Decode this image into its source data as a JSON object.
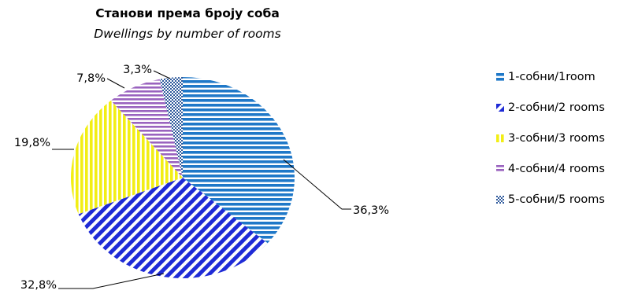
{
  "chart_data": {
    "type": "pie",
    "title": "Станови према броју соба",
    "subtitle": "Dwellings by number of rooms",
    "legend_position": "right",
    "slices": [
      {
        "label": "1-собни/1room",
        "value": 36.3,
        "value_label": "36,3%",
        "color": "#1f78c8",
        "pattern": "horizontal-stripes"
      },
      {
        "label": "2-собни/2 rooms",
        "value": 32.8,
        "value_label": "32,8%",
        "color": "#1f2bd6",
        "pattern": "diagonal-stripes"
      },
      {
        "label": "3-собни/3 rooms",
        "value": 19.8,
        "value_label": "19,8%",
        "color": "#f2ee14",
        "pattern": "vertical-stripes"
      },
      {
        "label": "4-собни/4 rooms",
        "value": 7.8,
        "value_label": "7,8%",
        "color": "#9a63bf",
        "pattern": "horizontal-stripes"
      },
      {
        "label": "5-собни/5 rooms",
        "value": 3.3,
        "value_label": "3,3%",
        "color": "#2f5a9c",
        "pattern": "checker"
      }
    ]
  }
}
